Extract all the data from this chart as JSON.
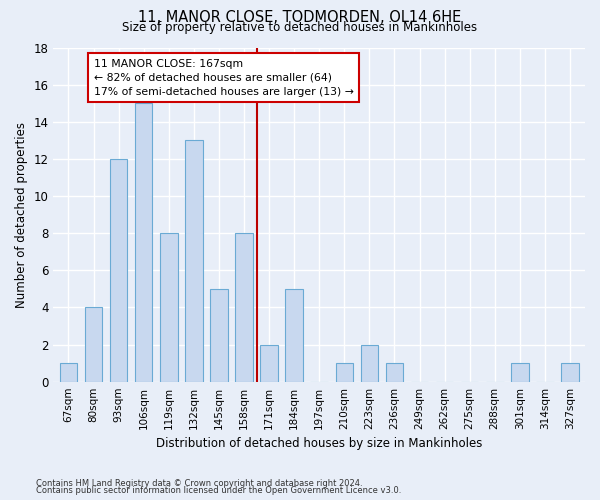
{
  "title1": "11, MANOR CLOSE, TODMORDEN, OL14 6HE",
  "title2": "Size of property relative to detached houses in Mankinholes",
  "xlabel": "Distribution of detached houses by size in Mankinholes",
  "ylabel": "Number of detached properties",
  "bins": [
    "67sqm",
    "80sqm",
    "93sqm",
    "106sqm",
    "119sqm",
    "132sqm",
    "145sqm",
    "158sqm",
    "171sqm",
    "184sqm",
    "197sqm",
    "210sqm",
    "223sqm",
    "236sqm",
    "249sqm",
    "262sqm",
    "275sqm",
    "288sqm",
    "301sqm",
    "314sqm",
    "327sqm"
  ],
  "values": [
    1,
    4,
    12,
    15,
    8,
    13,
    5,
    8,
    2,
    5,
    0,
    1,
    2,
    1,
    0,
    0,
    0,
    0,
    1,
    0,
    1
  ],
  "bar_color": "#c8d8ef",
  "bar_edge_color": "#6aaad4",
  "vline_color": "#bb0000",
  "annotation_text": "11 MANOR CLOSE: 167sqm\n← 82% of detached houses are smaller (64)\n17% of semi-detached houses are larger (13) →",
  "annotation_box_color": "#cc0000",
  "ylim": [
    0,
    18
  ],
  "yticks": [
    0,
    2,
    4,
    6,
    8,
    10,
    12,
    14,
    16,
    18
  ],
  "footnote1": "Contains HM Land Registry data © Crown copyright and database right 2024.",
  "footnote2": "Contains public sector information licensed under the Open Government Licence v3.0.",
  "bg_color": "#e8eef8",
  "plot_bg_color": "#e8eef8"
}
